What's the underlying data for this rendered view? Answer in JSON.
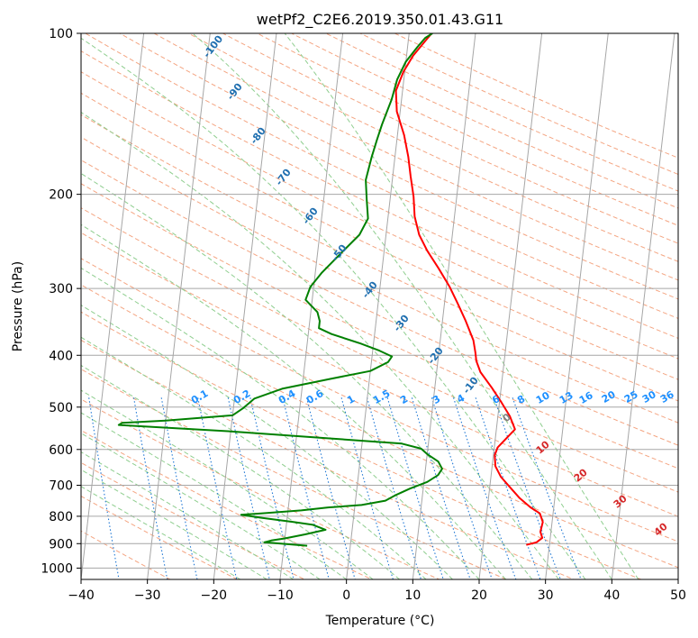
{
  "chart_data": {
    "type": "line",
    "title": "wetPf2_C2E6.2019.350.01.43.G11",
    "xlabel": "Temperature (°C)",
    "ylabel": "Pressure (hPa)",
    "xlim": [
      -40,
      50
    ],
    "ylim": [
      1050,
      100
    ],
    "y_scale": "log",
    "grid": true,
    "x_ticks": [
      "−40",
      "−30",
      "−20",
      "−10",
      "0",
      "10",
      "20",
      "30",
      "40",
      "50"
    ],
    "y_ticks": [
      "100",
      "200",
      "300",
      "400",
      "500",
      "600",
      "700",
      "800",
      "900",
      "1000"
    ],
    "colors": {
      "temperature": "#ff0000",
      "dewpoint": "#008000",
      "isotherm": "#a6a6a6",
      "dry_adiabat": "#f4a582",
      "moist_adiabat": "#8fce8f",
      "mixing_ratio": "#1f77d4",
      "label_dark": "#1f6fb0",
      "label_light": "#1e90ff",
      "label_red": "#d62728"
    },
    "series": [
      {
        "name": "",
        "color": "#ff0000",
        "points": [
          [
            26.5,
            905
          ],
          [
            28.0,
            895
          ],
          [
            28.8,
            878
          ],
          [
            28.4,
            855
          ],
          [
            28.6,
            820
          ],
          [
            28.0,
            790
          ],
          [
            26.5,
            770
          ],
          [
            24.7,
            740
          ],
          [
            23.0,
            705
          ],
          [
            21.5,
            675
          ],
          [
            20.5,
            645
          ],
          [
            20.2,
            615
          ],
          [
            20.5,
            595
          ],
          [
            21.5,
            575
          ],
          [
            22.8,
            550
          ],
          [
            21.8,
            520
          ],
          [
            20.3,
            490
          ],
          [
            18.6,
            460
          ],
          [
            16.6,
            430
          ],
          [
            15.8,
            410
          ],
          [
            15.5,
            395
          ],
          [
            15.0,
            375
          ],
          [
            13.5,
            345
          ],
          [
            12.0,
            320
          ],
          [
            10.5,
            298
          ],
          [
            8.5,
            275
          ],
          [
            6.5,
            255
          ],
          [
            5.0,
            238
          ],
          [
            4.0,
            220
          ],
          [
            3.5,
            202
          ],
          [
            2.7,
            185
          ],
          [
            2.0,
            170
          ],
          [
            1.0,
            155
          ],
          [
            -0.5,
            140
          ],
          [
            -1.0,
            128
          ],
          [
            -0.2,
            118
          ],
          [
            1.0,
            110
          ],
          [
            2.4,
            104
          ],
          [
            3.4,
            100
          ]
        ]
      },
      {
        "name": "",
        "color": "#008000",
        "points": [
          [
            -6.5,
            908
          ],
          [
            -10.5,
            900
          ],
          [
            -13.0,
            895
          ],
          [
            -12.0,
            888
          ],
          [
            -10.0,
            880
          ],
          [
            -7.0,
            865
          ],
          [
            -4.0,
            848
          ],
          [
            -6.0,
            830
          ],
          [
            -9.0,
            820
          ],
          [
            -14.0,
            805
          ],
          [
            -17.0,
            795
          ],
          [
            -14.0,
            790
          ],
          [
            -8.0,
            780
          ],
          [
            -4.0,
            770
          ],
          [
            1.0,
            762
          ],
          [
            4.5,
            748
          ],
          [
            6.0,
            730
          ],
          [
            8.0,
            710
          ],
          [
            10.5,
            690
          ],
          [
            12.0,
            670
          ],
          [
            12.5,
            652
          ],
          [
            11.8,
            632
          ],
          [
            10.0,
            612
          ],
          [
            9.0,
            598
          ],
          [
            6.0,
            585
          ],
          [
            -5.0,
            572
          ],
          [
            -20.0,
            555
          ],
          [
            -37.0,
            540
          ],
          [
            -36.5,
            535
          ],
          [
            -30.0,
            530
          ],
          [
            -20.0,
            518
          ],
          [
            -18.5,
            502
          ],
          [
            -17.0,
            482
          ],
          [
            -13.0,
            462
          ],
          [
            -6.0,
            443
          ],
          [
            0.0,
            428
          ],
          [
            2.5,
            412
          ],
          [
            3.0,
            402
          ],
          [
            1.0,
            392
          ],
          [
            -2.0,
            380
          ],
          [
            -6.5,
            365
          ],
          [
            -8.5,
            356
          ],
          [
            -8.5,
            345
          ],
          [
            -9.0,
            332
          ],
          [
            -11.0,
            315
          ],
          [
            -10.5,
            298
          ],
          [
            -9.0,
            280
          ],
          [
            -6.5,
            258
          ],
          [
            -4.0,
            238
          ],
          [
            -3.0,
            222
          ],
          [
            -3.5,
            205
          ],
          [
            -4.0,
            188
          ],
          [
            -3.5,
            170
          ],
          [
            -3.0,
            158
          ],
          [
            -2.5,
            148
          ],
          [
            -1.5,
            133
          ],
          [
            -1.0,
            122
          ],
          [
            0.0,
            113
          ],
          [
            1.5,
            106
          ],
          [
            2.5,
            102
          ],
          [
            3.5,
            100
          ]
        ]
      }
    ],
    "dry_adiabat_labels": [
      "-100",
      "-90",
      "-80",
      "-70",
      "-60",
      "-50",
      "-40",
      "-30",
      "-20",
      "-10"
    ],
    "mixing_ratio_labels": [
      "0.1",
      "0.2",
      "0.4",
      "0.6",
      "1",
      "1.5",
      "2",
      "3",
      "4",
      "6",
      "8",
      "10",
      "13",
      "16",
      "20",
      "25",
      "30",
      "36"
    ],
    "moist_labels": [
      "0",
      "10",
      "20",
      "30",
      "40"
    ]
  }
}
